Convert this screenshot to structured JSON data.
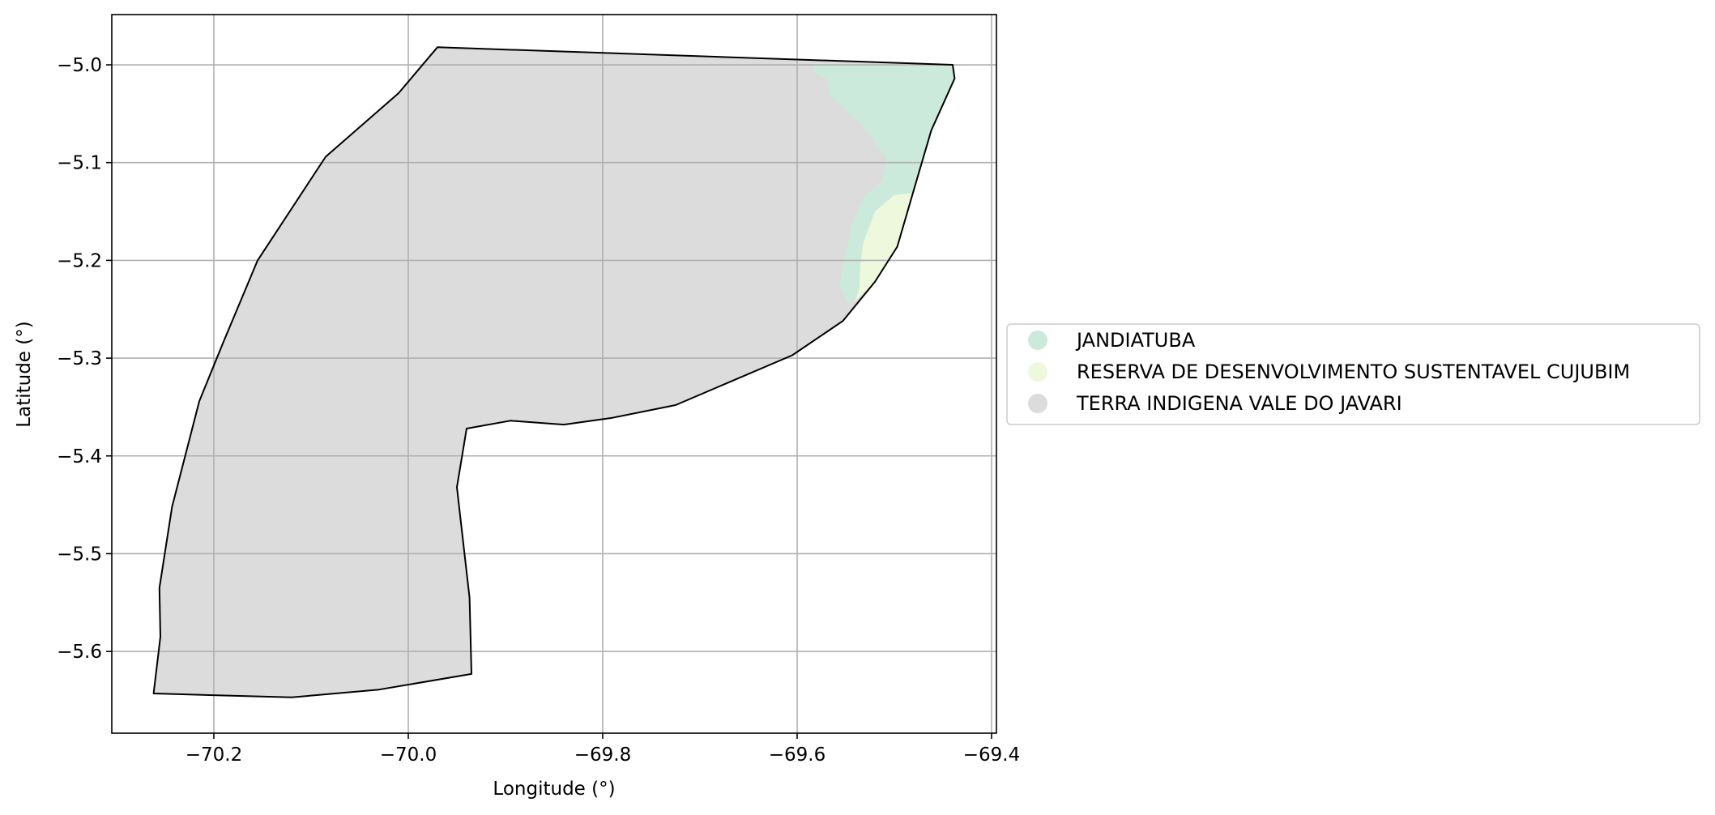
{
  "chart_data": {
    "type": "map",
    "xlabel": "Longitude (°)",
    "ylabel": "Latitude (°)",
    "xlim": [
      -70.305,
      -69.395
    ],
    "ylim": [
      -5.6836,
      -4.9486
    ],
    "xticks": [
      -70.2,
      -70.0,
      -69.8,
      -69.6,
      -69.4
    ],
    "yticks": [
      -5.0,
      -5.1,
      -5.2,
      -5.3,
      -5.4,
      -5.5,
      -5.6
    ],
    "xtick_labels": [
      "−70.2",
      "−70.0",
      "−69.8",
      "−69.6",
      "−69.4"
    ],
    "ytick_labels": [
      "−5.0",
      "−5.1",
      "−5.2",
      "−5.3",
      "−5.4",
      "−5.5",
      "−5.6"
    ],
    "grid": true,
    "legend_position": "right",
    "outline_color": "#000000",
    "grid_color": "#b0b0b0",
    "regions": [
      {
        "name": "TERRA INDIGENA VALE DO JAVARI",
        "color": "#dcdcdc",
        "outline": true,
        "coords": [
          [
            -69.97,
            -4.982
          ],
          [
            -69.44,
            -5.0
          ],
          [
            -69.438,
            -5.014
          ],
          [
            -69.462,
            -5.067
          ],
          [
            -69.48,
            -5.128
          ],
          [
            -69.497,
            -5.186
          ],
          [
            -69.52,
            -5.222
          ],
          [
            -69.553,
            -5.262
          ],
          [
            -69.605,
            -5.297
          ],
          [
            -69.725,
            -5.348
          ],
          [
            -69.79,
            -5.361
          ],
          [
            -69.84,
            -5.368
          ],
          [
            -69.895,
            -5.364
          ],
          [
            -69.94,
            -5.372
          ],
          [
            -69.95,
            -5.432
          ],
          [
            -69.937,
            -5.545
          ],
          [
            -69.935,
            -5.623
          ],
          [
            -70.03,
            -5.639
          ],
          [
            -70.12,
            -5.647
          ],
          [
            -70.262,
            -5.643
          ],
          [
            -70.255,
            -5.585
          ],
          [
            -70.256,
            -5.535
          ],
          [
            -70.243,
            -5.452
          ],
          [
            -70.215,
            -5.344
          ],
          [
            -70.19,
            -5.283
          ],
          [
            -70.155,
            -5.2
          ],
          [
            -70.085,
            -5.094
          ],
          [
            -70.01,
            -5.029
          ]
        ]
      },
      {
        "name": "JANDIATUBA",
        "color": "#cceadb",
        "outline": false,
        "coords": [
          [
            -69.585,
            -4.998
          ],
          [
            -69.44,
            -5.0
          ],
          [
            -69.438,
            -5.014
          ],
          [
            -69.462,
            -5.067
          ],
          [
            -69.48,
            -5.128
          ],
          [
            -69.497,
            -5.186
          ],
          [
            -69.52,
            -5.222
          ],
          [
            -69.548,
            -5.244
          ],
          [
            -69.556,
            -5.225
          ],
          [
            -69.553,
            -5.205
          ],
          [
            -69.548,
            -5.185
          ],
          [
            -69.543,
            -5.16
          ],
          [
            -69.53,
            -5.133
          ],
          [
            -69.513,
            -5.12
          ],
          [
            -69.508,
            -5.095
          ],
          [
            -69.535,
            -5.06
          ],
          [
            -69.565,
            -5.032
          ],
          [
            -69.57,
            -5.014
          ],
          [
            -69.582,
            -5.008
          ]
        ]
      },
      {
        "name": "RESERVA DE DESENVOLVIMENTO SUSTENTAVEL CUJUBIM",
        "color": "#edf8dc",
        "outline": false,
        "coords": [
          [
            -69.481,
            -5.131
          ],
          [
            -69.497,
            -5.186
          ],
          [
            -69.52,
            -5.222
          ],
          [
            -69.541,
            -5.242
          ],
          [
            -69.536,
            -5.23
          ],
          [
            -69.535,
            -5.205
          ],
          [
            -69.532,
            -5.182
          ],
          [
            -69.52,
            -5.15
          ],
          [
            -69.5,
            -5.133
          ]
        ]
      }
    ],
    "legend": [
      {
        "label": "JANDIATUBA",
        "color": "#cceadb"
      },
      {
        "label": "RESERVA DE DESENVOLVIMENTO SUSTENTAVEL CUJUBIM",
        "color": "#edf8dc"
      },
      {
        "label": "TERRA INDIGENA VALE DO JAVARI",
        "color": "#dcdcdc"
      }
    ]
  }
}
